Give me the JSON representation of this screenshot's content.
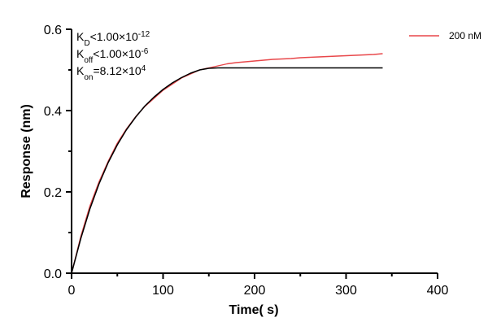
{
  "chart_data": {
    "type": "line",
    "xlabel": "Time( s)",
    "ylabel": "Response (nm)",
    "xlim": [
      0,
      400
    ],
    "ylim": [
      0,
      0.6
    ],
    "xticks": [
      "0",
      "100",
      "200",
      "300",
      "400"
    ],
    "yticks": [
      "0.0",
      "0.2",
      "0.4",
      "0.6"
    ],
    "grid": false,
    "legend_position": "top-right",
    "annotations": [
      {
        "main": "K",
        "sub": "D",
        "rel": "<",
        "mantissa": "1.00×10",
        "sup": "-12"
      },
      {
        "main": "K",
        "sub": "off",
        "rel": "<",
        "mantissa": "1.00×10",
        "sup": "-6"
      },
      {
        "main": "K",
        "sub": "on",
        "rel": "=",
        "mantissa": "8.12×10",
        "sup": "4"
      }
    ],
    "series": [
      {
        "name": "200 nM",
        "color": "#e8474a",
        "style": "measured",
        "x": [
          0,
          10,
          20,
          30,
          40,
          50,
          60,
          70,
          80,
          90,
          100,
          110,
          120,
          130,
          140,
          150,
          160,
          170,
          180,
          190,
          200,
          210,
          220,
          230,
          240,
          250,
          260,
          270,
          280,
          290,
          300,
          310,
          320,
          330,
          340
        ],
        "y": [
          0.0,
          0.09,
          0.165,
          0.225,
          0.275,
          0.32,
          0.355,
          0.385,
          0.41,
          0.43,
          0.45,
          0.465,
          0.48,
          0.49,
          0.5,
          0.505,
          0.51,
          0.515,
          0.518,
          0.52,
          0.522,
          0.524,
          0.526,
          0.527,
          0.528,
          0.53,
          0.531,
          0.532,
          0.533,
          0.534,
          0.535,
          0.536,
          0.537,
          0.538,
          0.54
        ]
      },
      {
        "color": "#000000",
        "style": "fit",
        "x": [
          0,
          10,
          20,
          30,
          40,
          50,
          60,
          70,
          80,
          90,
          100,
          110,
          120,
          130,
          140,
          150,
          160,
          200,
          250,
          300,
          340
        ],
        "y": [
          0.0,
          0.085,
          0.158,
          0.22,
          0.272,
          0.316,
          0.353,
          0.384,
          0.411,
          0.433,
          0.452,
          0.468,
          0.481,
          0.492,
          0.5,
          0.504,
          0.505,
          0.505,
          0.505,
          0.505,
          0.505
        ]
      }
    ]
  }
}
